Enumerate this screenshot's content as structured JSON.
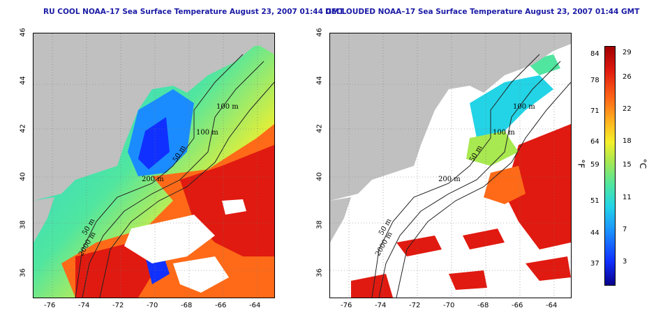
{
  "panels": [
    {
      "title": "RU COOL NOAA–17 Sea Surface Temperature August 23, 2007 01:44 GMT",
      "clouds": "present"
    },
    {
      "title": "DECLOUDED NOAA–17 Sea Surface Temperature August 23, 2007 01:44 GMT",
      "clouds": "removed"
    }
  ],
  "x_ticks": [
    "-76",
    "-74",
    "-72",
    "-70",
    "-68",
    "-66",
    "-64"
  ],
  "y_ticks": [
    "46",
    "44",
    "42",
    "40",
    "38",
    "36"
  ],
  "contour_labels": [
    "100 m",
    "100 m",
    "50 m",
    "200 m",
    "50 m",
    "2000 m"
  ],
  "colorbar": {
    "fahrenheit_label": "°F",
    "celsius_label": "°C",
    "fahrenheit_ticks": [
      "84",
      "78",
      "71",
      "64",
      "59",
      "51",
      "44",
      "37"
    ],
    "celsius_ticks": [
      "29",
      "26",
      "22",
      "18",
      "15",
      "11",
      "7",
      "3"
    ]
  },
  "colors": {
    "land": "#c0c0c0",
    "clouds": "#ffffff",
    "title": "#1a1aa6",
    "warm": "#e01a10",
    "cold": "#1030ff"
  }
}
